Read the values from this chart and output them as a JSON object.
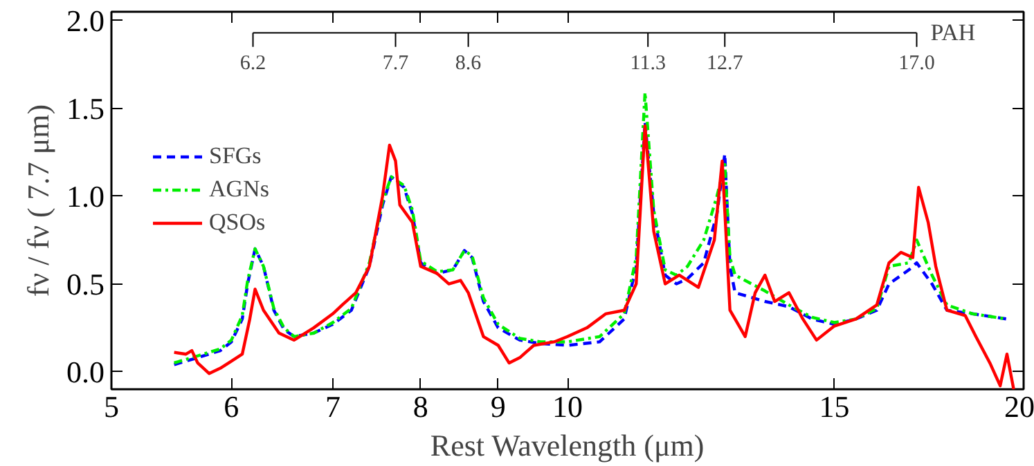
{
  "chart_data": {
    "type": "line",
    "xlabel": "Rest Wavelength (μm)",
    "ylabel": "fν / fν ( 7.7 μm)",
    "log": "x",
    "xlim": [
      5,
      20
    ],
    "xticks": [
      5,
      6,
      7,
      8,
      9,
      10,
      15,
      20
    ],
    "ylim": [
      -0.1,
      2.05
    ],
    "yticks": [
      {
        "value": 0,
        "label": "0.0"
      },
      0.5,
      {
        "value": 1,
        "label": "1.0"
      },
      1.5,
      {
        "value": 2,
        "label": "2.0"
      }
    ],
    "grid": false,
    "legend": "top left",
    "annotations": [
      "PAH"
    ],
    "ref_lines": [
      {
        "axis": "x",
        "value": 6.2,
        "label": "6.2"
      },
      {
        "axis": "x",
        "value": 7.7,
        "label": "7.7"
      },
      {
        "axis": "x",
        "value": 8.6,
        "label": "8.6"
      },
      {
        "axis": "x",
        "value": 11.3,
        "label": "11.3"
      },
      {
        "axis": "x",
        "value": 12.7,
        "label": "12.7"
      },
      {
        "axis": "x",
        "value": 17.0,
        "label": "17.0"
      }
    ],
    "series": [
      {
        "name": "SFGs",
        "color": "#0000ff",
        "line_style": "dashed",
        "x": [
          5.5,
          5.7,
          5.9,
          6.0,
          6.1,
          6.15,
          6.22,
          6.3,
          6.4,
          6.5,
          6.6,
          6.8,
          7.0,
          7.2,
          7.4,
          7.55,
          7.65,
          7.8,
          7.9,
          8.0,
          8.2,
          8.4,
          8.55,
          8.65,
          8.8,
          9.0,
          9.3,
          9.6,
          10.0,
          10.5,
          10.9,
          11.1,
          11.25,
          11.4,
          11.6,
          11.8,
          12.0,
          12.3,
          12.55,
          12.7,
          12.8,
          12.9,
          13.5,
          14.0,
          14.5,
          15.0,
          15.5,
          16.0,
          16.3,
          16.8,
          17.0,
          17.4,
          17.8,
          18.5,
          19.5
        ],
        "values": [
          0.04,
          0.08,
          0.12,
          0.17,
          0.3,
          0.5,
          0.7,
          0.6,
          0.35,
          0.24,
          0.2,
          0.22,
          0.27,
          0.35,
          0.6,
          0.95,
          1.11,
          1.05,
          0.9,
          0.62,
          0.56,
          0.58,
          0.69,
          0.65,
          0.4,
          0.25,
          0.18,
          0.16,
          0.15,
          0.17,
          0.3,
          0.6,
          1.42,
          0.9,
          0.55,
          0.5,
          0.53,
          0.62,
          0.9,
          1.24,
          0.6,
          0.45,
          0.4,
          0.37,
          0.3,
          0.27,
          0.3,
          0.35,
          0.5,
          0.58,
          0.62,
          0.5,
          0.35,
          0.33,
          0.3
        ]
      },
      {
        "name": "AGNs",
        "color": "#00ee00",
        "line_style": "dashdot",
        "x": [
          5.5,
          5.7,
          5.9,
          6.0,
          6.1,
          6.15,
          6.22,
          6.3,
          6.4,
          6.5,
          6.6,
          6.8,
          7.0,
          7.2,
          7.4,
          7.55,
          7.65,
          7.8,
          7.9,
          8.0,
          8.2,
          8.4,
          8.55,
          8.65,
          8.8,
          9.0,
          9.3,
          9.6,
          10.0,
          10.5,
          10.9,
          11.1,
          11.25,
          11.4,
          11.6,
          11.8,
          12.0,
          12.3,
          12.55,
          12.7,
          12.8,
          12.9,
          13.5,
          14.0,
          14.5,
          15.0,
          15.5,
          16.0,
          16.3,
          16.8,
          17.0,
          17.4,
          17.8,
          18.5,
          19.5
        ],
        "values": [
          0.05,
          0.09,
          0.13,
          0.18,
          0.32,
          0.52,
          0.7,
          0.6,
          0.36,
          0.25,
          0.2,
          0.22,
          0.28,
          0.36,
          0.62,
          0.97,
          1.11,
          1.06,
          0.92,
          0.63,
          0.57,
          0.58,
          0.69,
          0.66,
          0.42,
          0.27,
          0.19,
          0.17,
          0.17,
          0.2,
          0.33,
          0.65,
          1.59,
          0.92,
          0.58,
          0.55,
          0.6,
          0.75,
          1.0,
          1.18,
          0.65,
          0.55,
          0.46,
          0.38,
          0.31,
          0.28,
          0.3,
          0.36,
          0.6,
          0.62,
          0.75,
          0.55,
          0.38,
          0.33,
          0.3
        ]
      },
      {
        "name": "QSOs",
        "color": "#ff0000",
        "line_style": "solid",
        "x": [
          5.5,
          5.6,
          5.65,
          5.7,
          5.8,
          5.9,
          6.0,
          6.1,
          6.17,
          6.22,
          6.3,
          6.45,
          6.6,
          6.8,
          7.0,
          7.1,
          7.25,
          7.4,
          7.55,
          7.63,
          7.7,
          7.75,
          7.9,
          8.0,
          8.2,
          8.35,
          8.5,
          8.6,
          8.8,
          9.0,
          9.15,
          9.3,
          9.5,
          9.8,
          10.0,
          10.3,
          10.6,
          10.9,
          11.1,
          11.25,
          11.4,
          11.6,
          11.85,
          12.2,
          12.5,
          12.65,
          12.8,
          12.9,
          13.1,
          13.3,
          13.5,
          13.7,
          14.0,
          14.3,
          14.6,
          15.0,
          15.5,
          16.0,
          16.3,
          16.6,
          16.9,
          17.05,
          17.3,
          17.5,
          17.8,
          18.3,
          18.6,
          19.0,
          19.3,
          19.5,
          19.7
        ],
        "values": [
          0.11,
          0.1,
          0.12,
          0.05,
          -0.01,
          0.02,
          0.06,
          0.1,
          0.3,
          0.47,
          0.35,
          0.22,
          0.18,
          0.25,
          0.33,
          0.38,
          0.45,
          0.6,
          1.0,
          1.29,
          1.2,
          0.95,
          0.85,
          0.6,
          0.56,
          0.5,
          0.52,
          0.45,
          0.2,
          0.15,
          0.05,
          0.08,
          0.15,
          0.17,
          0.2,
          0.25,
          0.33,
          0.35,
          0.5,
          1.4,
          0.8,
          0.5,
          0.55,
          0.48,
          0.75,
          1.2,
          0.35,
          0.3,
          0.2,
          0.45,
          0.55,
          0.4,
          0.45,
          0.3,
          0.18,
          0.26,
          0.3,
          0.38,
          0.62,
          0.68,
          0.65,
          1.05,
          0.85,
          0.6,
          0.35,
          0.32,
          0.2,
          0.05,
          -0.08,
          0.1,
          -0.1
        ]
      }
    ]
  }
}
